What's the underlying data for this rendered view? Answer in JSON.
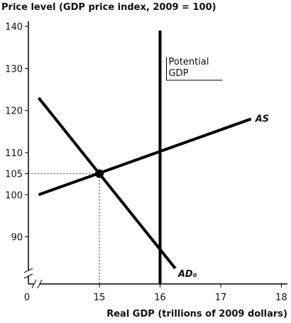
{
  "chart_data": {
    "type": "line",
    "y_label": "Price level (GDP price index, 2009 = 100)",
    "x_label": "Real GDP (trillions of 2009 dollars)",
    "origin_label": "0",
    "xlim": [
      13.83,
      18.1
    ],
    "ylim": [
      78.8,
      141.2
    ],
    "xticks": [
      15,
      16,
      17,
      18
    ],
    "yticks": [
      90,
      100,
      105,
      110,
      120,
      130,
      140
    ],
    "series": [
      {
        "name": "AS",
        "color": "#000000",
        "x": [
          14,
          17.5
        ],
        "values": [
          100,
          118
        ]
      },
      {
        "name": "AD₀",
        "color": "#000000",
        "x": [
          14,
          16.25
        ],
        "values": [
          123,
          82.5
        ]
      },
      {
        "label_lines": [
          "Potential",
          "GDP"
        ],
        "color": "#000000",
        "x": [
          16,
          16
        ],
        "values": [
          139,
          78.8
        ]
      }
    ],
    "point": {
      "x": 15,
      "y": 105
    }
  }
}
